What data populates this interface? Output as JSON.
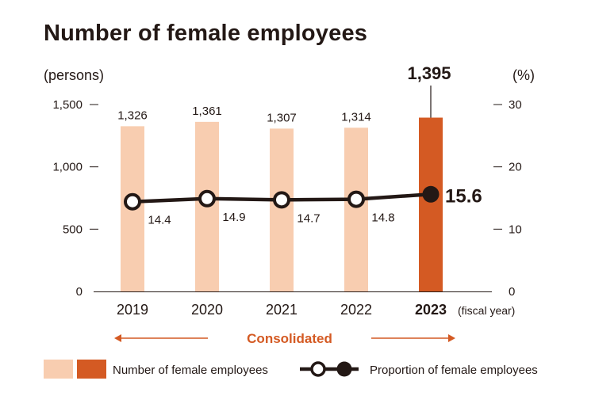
{
  "title": "Number of female employees",
  "chart_data": {
    "type": "bar+line",
    "title": "Number of female employees",
    "categories": [
      "2019",
      "2020",
      "2021",
      "2022",
      "2023"
    ],
    "x_unit": "(fiscal year)",
    "left_axis": {
      "label": "(persons)",
      "ylim": [
        0,
        1500
      ],
      "ticks": [
        "0",
        "500",
        "1,000",
        "1,500"
      ],
      "tick_values": [
        0,
        500,
        1000,
        1500
      ]
    },
    "right_axis": {
      "label": "(%)",
      "ylim": [
        0,
        30
      ],
      "ticks": [
        "0",
        "10",
        "20",
        "30"
      ],
      "tick_values": [
        0,
        10,
        20,
        30
      ]
    },
    "series": [
      {
        "name": "Number of female employees",
        "type": "bar",
        "axis": "left",
        "values": [
          1326,
          1361,
          1307,
          1314,
          1395
        ],
        "labels": [
          "1,326",
          "1,361",
          "1,307",
          "1,314",
          "1,395"
        ]
      },
      {
        "name": "Proportion of female employees",
        "type": "line",
        "axis": "right",
        "values": [
          14.4,
          14.9,
          14.7,
          14.8,
          15.6
        ],
        "labels": [
          "14.4",
          "14.9",
          "14.7",
          "14.8",
          "15.6"
        ]
      }
    ],
    "highlight_category": "2023",
    "span_label": "Consolidated",
    "legend": "bottom",
    "grid": false,
    "colors": {
      "bar": "#f8cdb0",
      "bar_highlight": "#d45a23",
      "line": "#231815",
      "accent": "#d45a23",
      "axis": "#231815"
    }
  }
}
